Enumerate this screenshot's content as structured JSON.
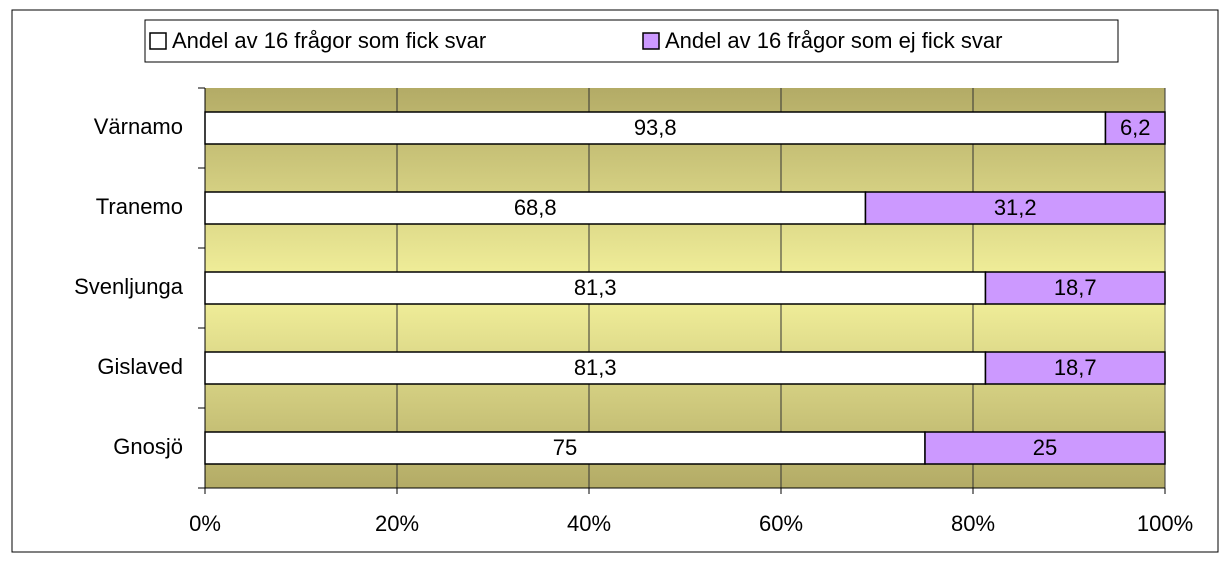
{
  "chart_data": {
    "type": "bar",
    "orientation": "horizontal",
    "stacked": true,
    "categories": [
      "Värnamo",
      "Tranemo",
      "Svenljunga",
      "Gislaved",
      "Gnosjö"
    ],
    "series": [
      {
        "name": "Andel av 16 frågor som fick svar",
        "color": "#ffffff",
        "values": [
          93.8,
          68.8,
          81.3,
          81.3,
          75
        ],
        "value_labels": [
          "93,8",
          "68,8",
          "81,3",
          "81,3",
          "75"
        ]
      },
      {
        "name": "Andel av 16 frågor som ej fick svar",
        "color": "#cc99ff",
        "values": [
          6.2,
          31.2,
          18.7,
          18.7,
          25
        ],
        "value_labels": [
          "6,2",
          "31,2",
          "18,7",
          "18,7",
          "25"
        ]
      }
    ],
    "xlim": [
      0,
      100
    ],
    "xticks": [
      {
        "value": 0,
        "label": "0%"
      },
      {
        "value": 20,
        "label": "20%"
      },
      {
        "value": 40,
        "label": "40%"
      },
      {
        "value": 60,
        "label": "60%"
      },
      {
        "value": 80,
        "label": "80%"
      },
      {
        "value": 100,
        "label": "100%"
      }
    ],
    "grid": true,
    "legend": "top"
  }
}
